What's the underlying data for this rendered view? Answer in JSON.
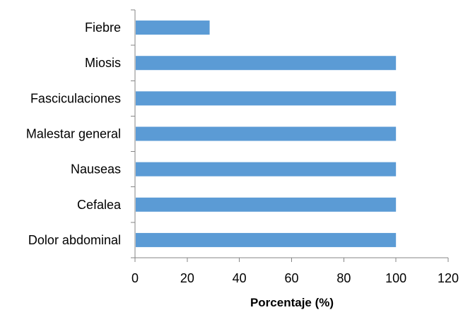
{
  "chart_data": {
    "type": "bar",
    "orientation": "horizontal",
    "categories": [
      "Fiebre",
      "Miosis",
      "Fasciculaciones",
      "Malestar general",
      "Nauseas",
      "Cefalea",
      "Dolor abdominal"
    ],
    "values": [
      28.6,
      100,
      100,
      100,
      100,
      100,
      100
    ],
    "xlabel": "Porcentaje (%)",
    "ylabel": "",
    "xlim": [
      0,
      120
    ],
    "xticks": [
      "0",
      "20",
      "40",
      "60",
      "80",
      "100",
      "120"
    ],
    "grid": false,
    "legend": "none",
    "bar_color": "#5B9BD5",
    "axis_color": "#868686"
  }
}
